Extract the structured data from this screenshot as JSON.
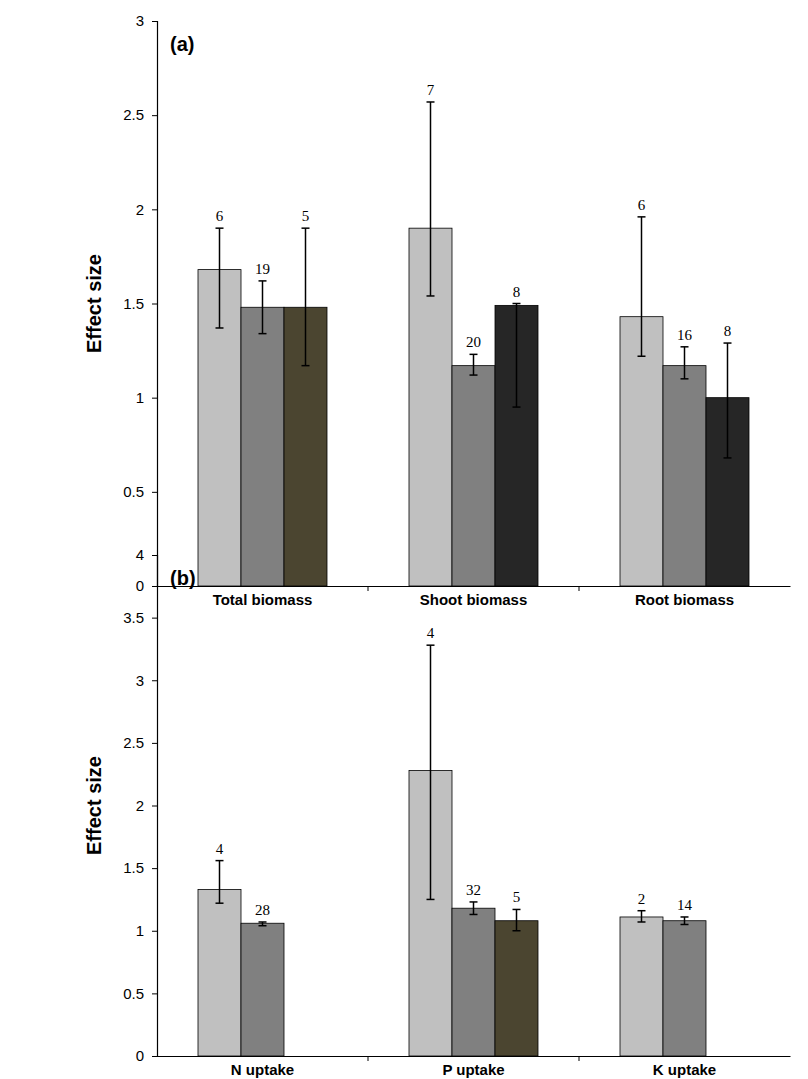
{
  "chart_data": [
    {
      "type": "bar",
      "title": "(a)",
      "y_label": "Effect size",
      "categories": [
        "Total biomass",
        "Shoot biomass",
        "Root biomass"
      ],
      "ylim": [
        0,
        3
      ],
      "yticks": [
        0,
        0.5,
        1,
        1.5,
        2,
        2.5,
        3
      ],
      "series": [
        {
          "color": "#c0c0c0",
          "values": [
            1.68,
            1.9,
            1.43
          ],
          "error_lower": [
            1.37,
            1.54,
            1.22
          ],
          "error_upper": [
            1.9,
            2.57,
            1.96
          ],
          "n": [
            6,
            7,
            6
          ]
        },
        {
          "color": "#808080",
          "values": [
            1.48,
            1.17,
            1.17
          ],
          "error_lower": [
            1.34,
            1.12,
            1.1
          ],
          "error_upper": [
            1.62,
            1.23,
            1.27
          ],
          "n": [
            19,
            20,
            16
          ]
        },
        {
          "colors": [
            "#4b4530",
            "#262626",
            "#262626"
          ],
          "values": [
            1.48,
            1.49,
            1.0
          ],
          "error_lower": [
            1.17,
            0.95,
            0.68
          ],
          "error_upper": [
            1.9,
            1.5,
            1.29
          ],
          "n": [
            5,
            8,
            8
          ]
        }
      ]
    },
    {
      "type": "bar",
      "title": "(b)",
      "y_label": "Effect size",
      "categories": [
        "N uptake",
        "P uptake",
        "K uptake"
      ],
      "ylim": [
        0,
        4
      ],
      "yticks": [
        0,
        0.5,
        1,
        1.5,
        2,
        2.5,
        3,
        3.5,
        4
      ],
      "series": [
        {
          "color": "#c0c0c0",
          "values": [
            1.33,
            2.28,
            1.11
          ],
          "error_lower": [
            1.22,
            1.25,
            1.07
          ],
          "error_upper": [
            1.56,
            3.28,
            1.16
          ],
          "n": [
            4,
            4,
            2
          ]
        },
        {
          "color": "#808080",
          "values": [
            1.06,
            1.18,
            1.08
          ],
          "error_lower": [
            1.04,
            1.13,
            1.05
          ],
          "error_upper": [
            1.07,
            1.23,
            1.11
          ],
          "n": [
            28,
            32,
            14
          ]
        },
        {
          "color": "#4b4530",
          "values": [
            null,
            1.08,
            null
          ],
          "error_lower": [
            null,
            1.0,
            null
          ],
          "error_upper": [
            null,
            1.17,
            null
          ],
          "n": [
            null,
            5,
            null
          ]
        }
      ]
    }
  ]
}
